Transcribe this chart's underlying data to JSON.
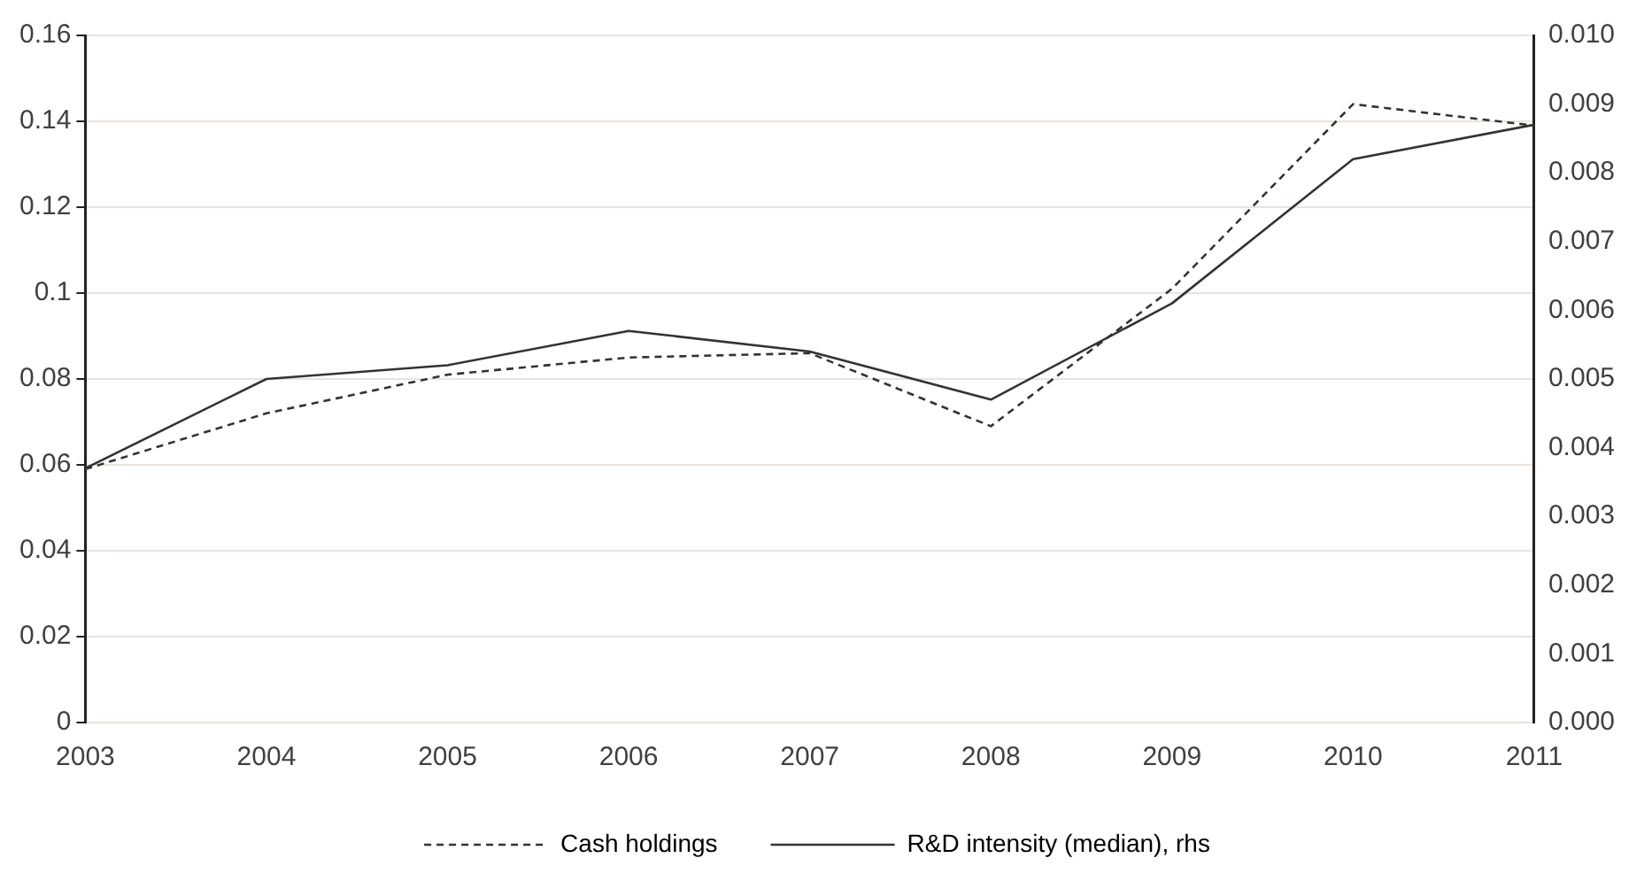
{
  "chart_data": {
    "type": "line",
    "categories": [
      "2003",
      "2004",
      "2005",
      "2006",
      "2007",
      "2008",
      "2009",
      "2010",
      "2011"
    ],
    "series": [
      {
        "name": "Cash holdings",
        "color": "#333333",
        "line_style": "dashed",
        "values": [
          0.059,
          0.072,
          0.081,
          0.085,
          0.086,
          0.069,
          0.101,
          0.144,
          0.139
        ]
      },
      {
        "name": "R&D intensity (median), rhs",
        "color": "#333333",
        "line_style": "solid",
        "axis": "y2",
        "values": [
          0.0037,
          0.005,
          0.0052,
          0.0057,
          0.0054,
          0.0047,
          0.0061,
          0.0082,
          0.0087
        ]
      }
    ],
    "ylim": [
      0,
      0.16
    ],
    "yticks": [
      0,
      0.02,
      0.04,
      0.06,
      0.08,
      0.1,
      0.12,
      0.14,
      0.16
    ],
    "y2lim": [
      0,
      0.01
    ],
    "y2ticks": [
      {
        "value": 0,
        "label": "0.000"
      },
      0.001,
      0.002,
      0.003,
      0.004,
      0.005,
      0.006,
      0.007,
      0.008,
      0.009,
      {
        "value": 0.01,
        "label": "0.010"
      }
    ],
    "grid": "y",
    "legend": "bottom",
    "marker": "none"
  }
}
